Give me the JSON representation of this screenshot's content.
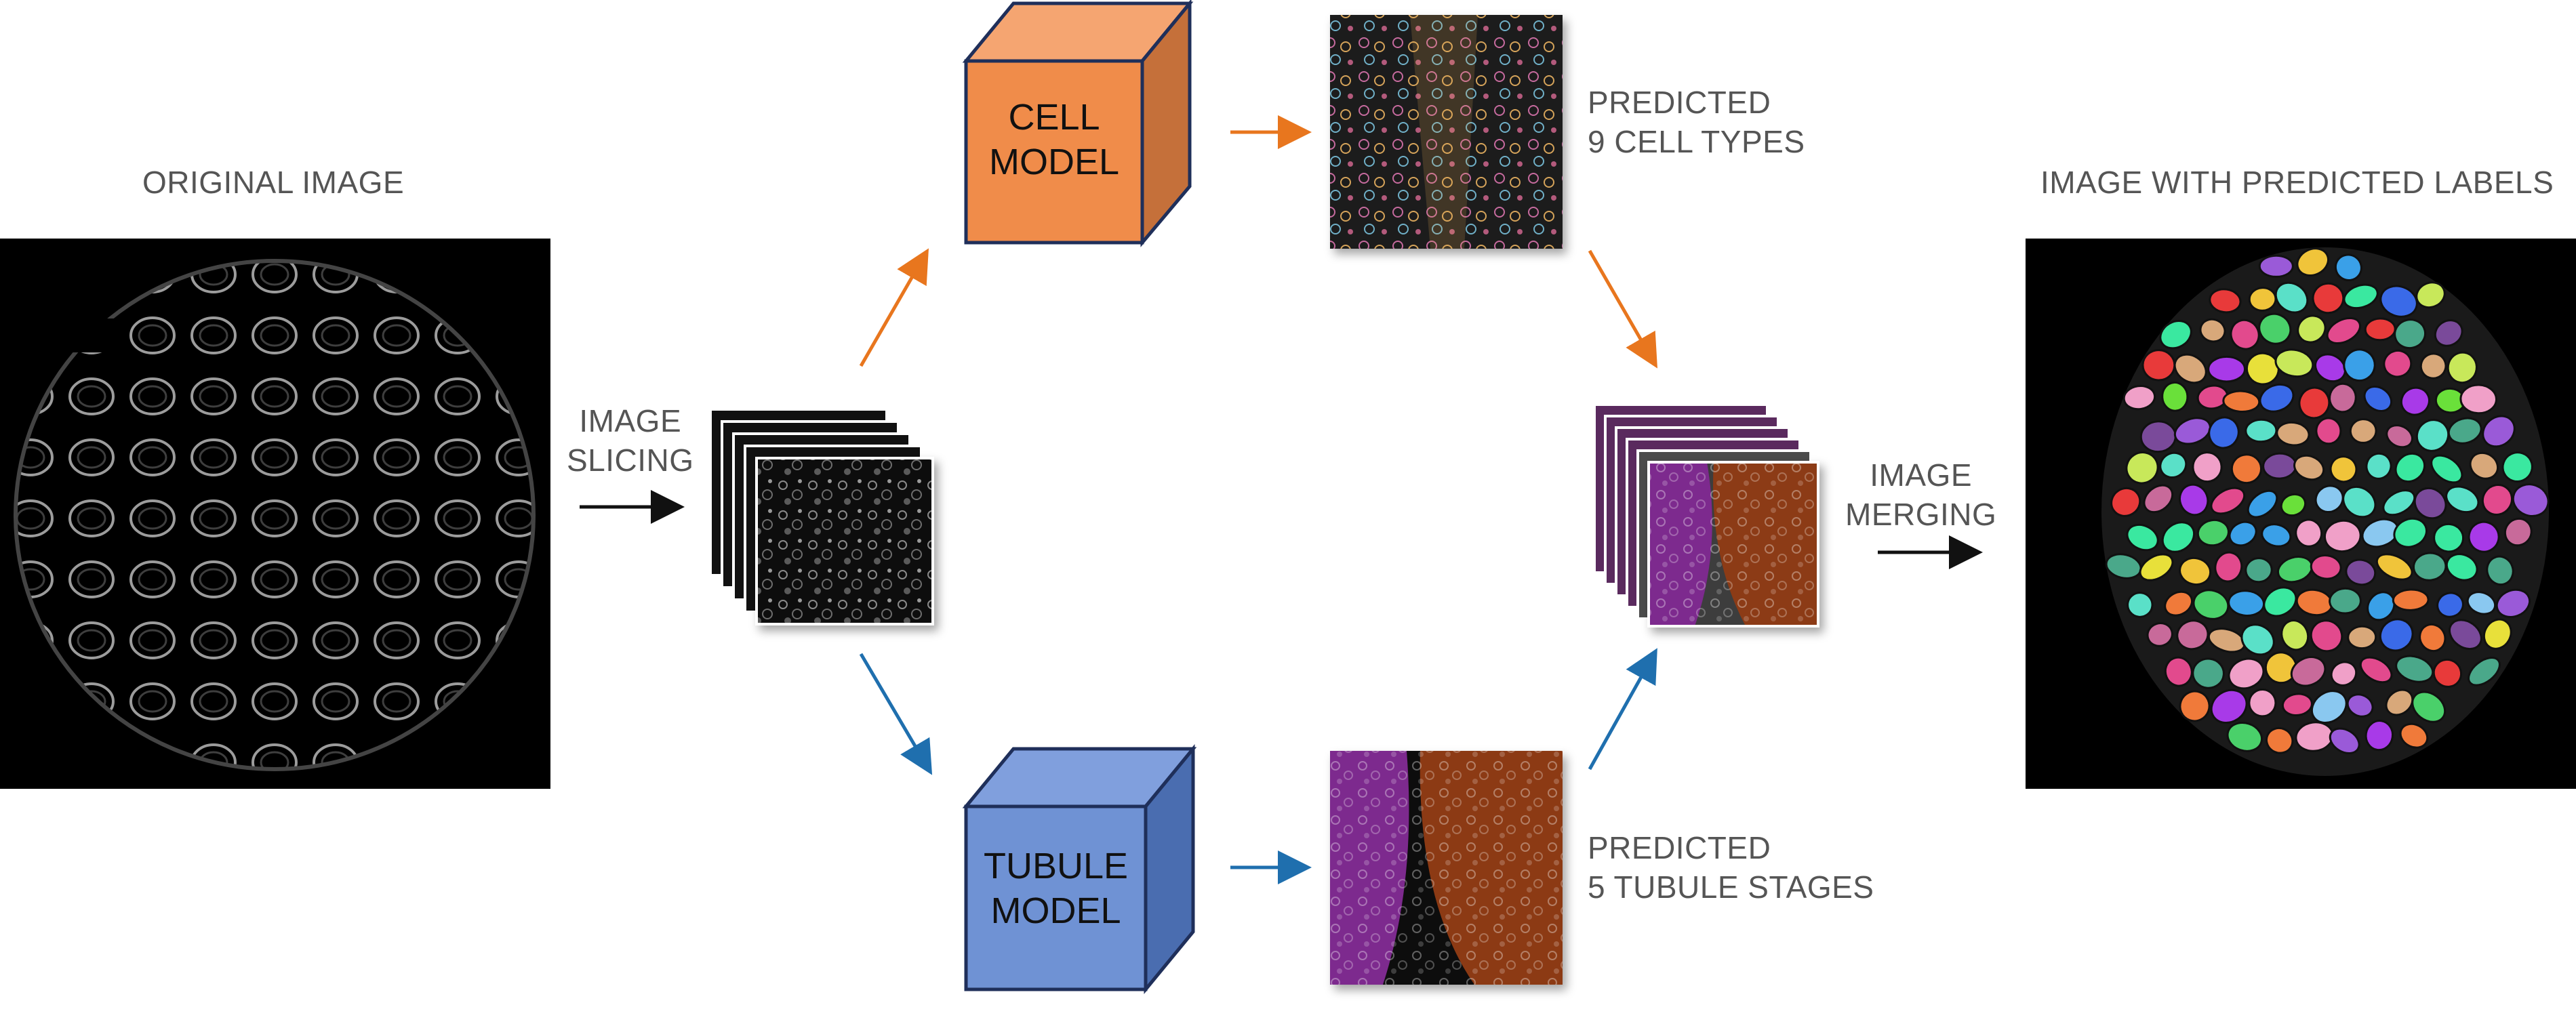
{
  "labels": {
    "original_image": "ORIGINAL IMAGE",
    "image_slicing": [
      "IMAGE",
      "SLICING"
    ],
    "cell_model": [
      "CELL",
      "MODEL"
    ],
    "tubule_model": [
      "TUBULE",
      "MODEL"
    ],
    "predicted_cells": [
      "PREDICTED",
      "9 CELL TYPES"
    ],
    "predicted_tubules": [
      "PREDICTED",
      "5 TUBULE STAGES"
    ],
    "image_merging": [
      "IMAGE",
      "MERGING"
    ],
    "image_with_labels": "IMAGE WITH PREDICTED LABELS"
  },
  "colors": {
    "cell_model": "#f08c4a",
    "tubule_model": "#6f92d4",
    "cell_arrow": "#e8761e",
    "tubule_arrow": "#1f6fae",
    "flow_arrow": "#111111",
    "purple_stage": "#7d2a8e",
    "brown_stage": "#8c3a14"
  },
  "icons": [
    "arrow-right-icon",
    "arrow-diagonal-icon",
    "cube-icon"
  ]
}
